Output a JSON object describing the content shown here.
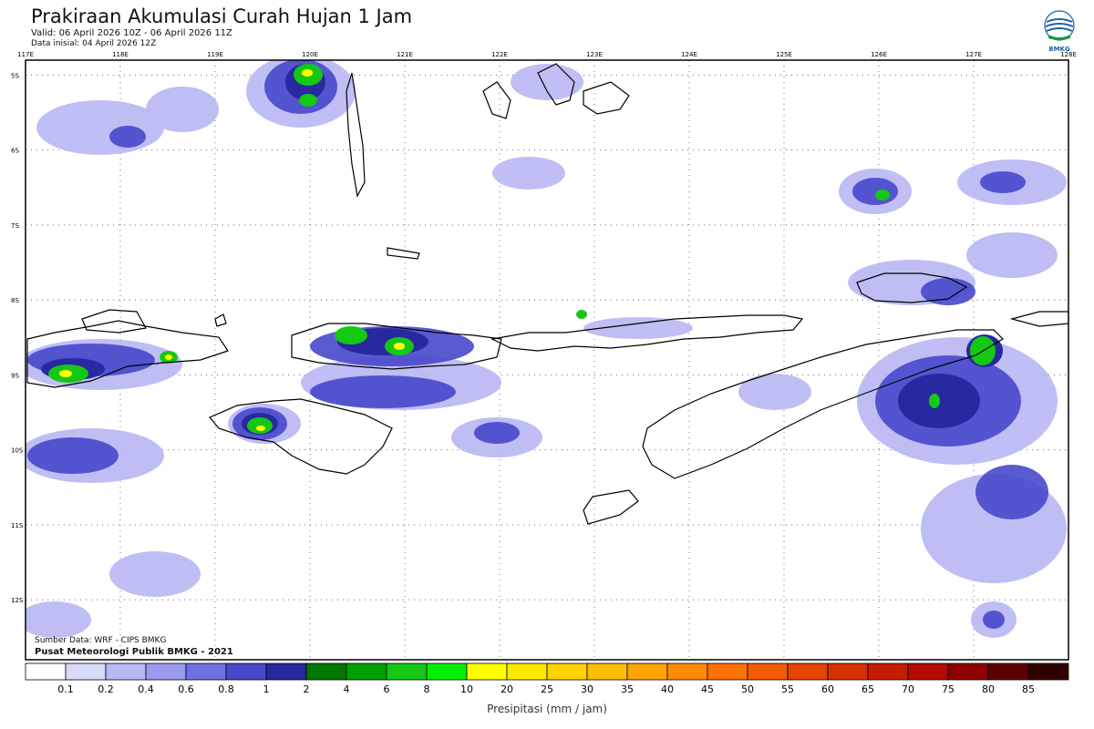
{
  "header": {
    "title": "Prakiraan Akumulasi Curah Hujan 1 Jam",
    "valid": "Valid: 06 April 2026 10Z - 06 April 2026 11Z",
    "initial": "Data inisial: 04 April 2026 12Z",
    "logo_text": "BMKG"
  },
  "footer": {
    "source": "Sumber Data: WRF - CIPS BMKG",
    "agency": "Pusat Meteorologi Publik BMKG - 2021"
  },
  "map": {
    "lon_labels": [
      "117E",
      "118E",
      "119E",
      "120E",
      "121E",
      "122E",
      "123E",
      "124E",
      "125E",
      "126E",
      "127E",
      "128E"
    ],
    "lat_labels": [
      "5S",
      "6S",
      "7S",
      "8S",
      "9S",
      "10S",
      "11S",
      "12S"
    ],
    "lon_range": [
      117,
      128
    ],
    "lat_range": [
      -4.8,
      -12.8
    ]
  },
  "colorbar": {
    "label": "Presipitasi (mm / jam)",
    "ticks": [
      "0.1",
      "0.2",
      "0.4",
      "0.6",
      "0.8",
      "1",
      "2",
      "4",
      "6",
      "8",
      "10",
      "20",
      "25",
      "30",
      "35",
      "40",
      "45",
      "50",
      "55",
      "60",
      "65",
      "70",
      "75",
      "80",
      "85"
    ],
    "colors": [
      "#ffffff",
      "#d8d8f8",
      "#b8b8f4",
      "#9a9af0",
      "#6f6fe4",
      "#4848cc",
      "#2828a0",
      "#007800",
      "#00a000",
      "#14c814",
      "#00f000",
      "#ffff00",
      "#ffe800",
      "#ffd200",
      "#ffbc00",
      "#ffa400",
      "#ff8c00",
      "#ff7000",
      "#f45a00",
      "#e64400",
      "#d83000",
      "#c81c00",
      "#b40a00",
      "#900000",
      "#5c0000",
      "#300000"
    ]
  }
}
